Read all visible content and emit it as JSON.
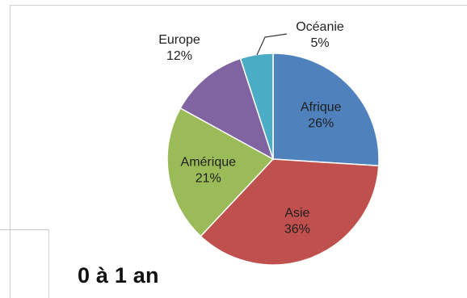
{
  "chart_data": {
    "type": "pie",
    "title": "",
    "slices": [
      {
        "label": "Afrique",
        "value": 26,
        "value_label": "26%",
        "color": "#4f81bd"
      },
      {
        "label": "Asie",
        "value": 36,
        "value_label": "36%",
        "color": "#c0504d"
      },
      {
        "label": "Amérique",
        "value": 21,
        "value_label": "21%",
        "color": "#9bbb59"
      },
      {
        "label": "Europe",
        "value": 12,
        "value_label": "12%",
        "color": "#8064a2"
      },
      {
        "label": "Océanie",
        "value": 5,
        "value_label": "5%",
        "color": "#4bacc6"
      }
    ],
    "start_angle_deg": 0,
    "direction": "clockwise",
    "caption": "0 à 1 an"
  }
}
